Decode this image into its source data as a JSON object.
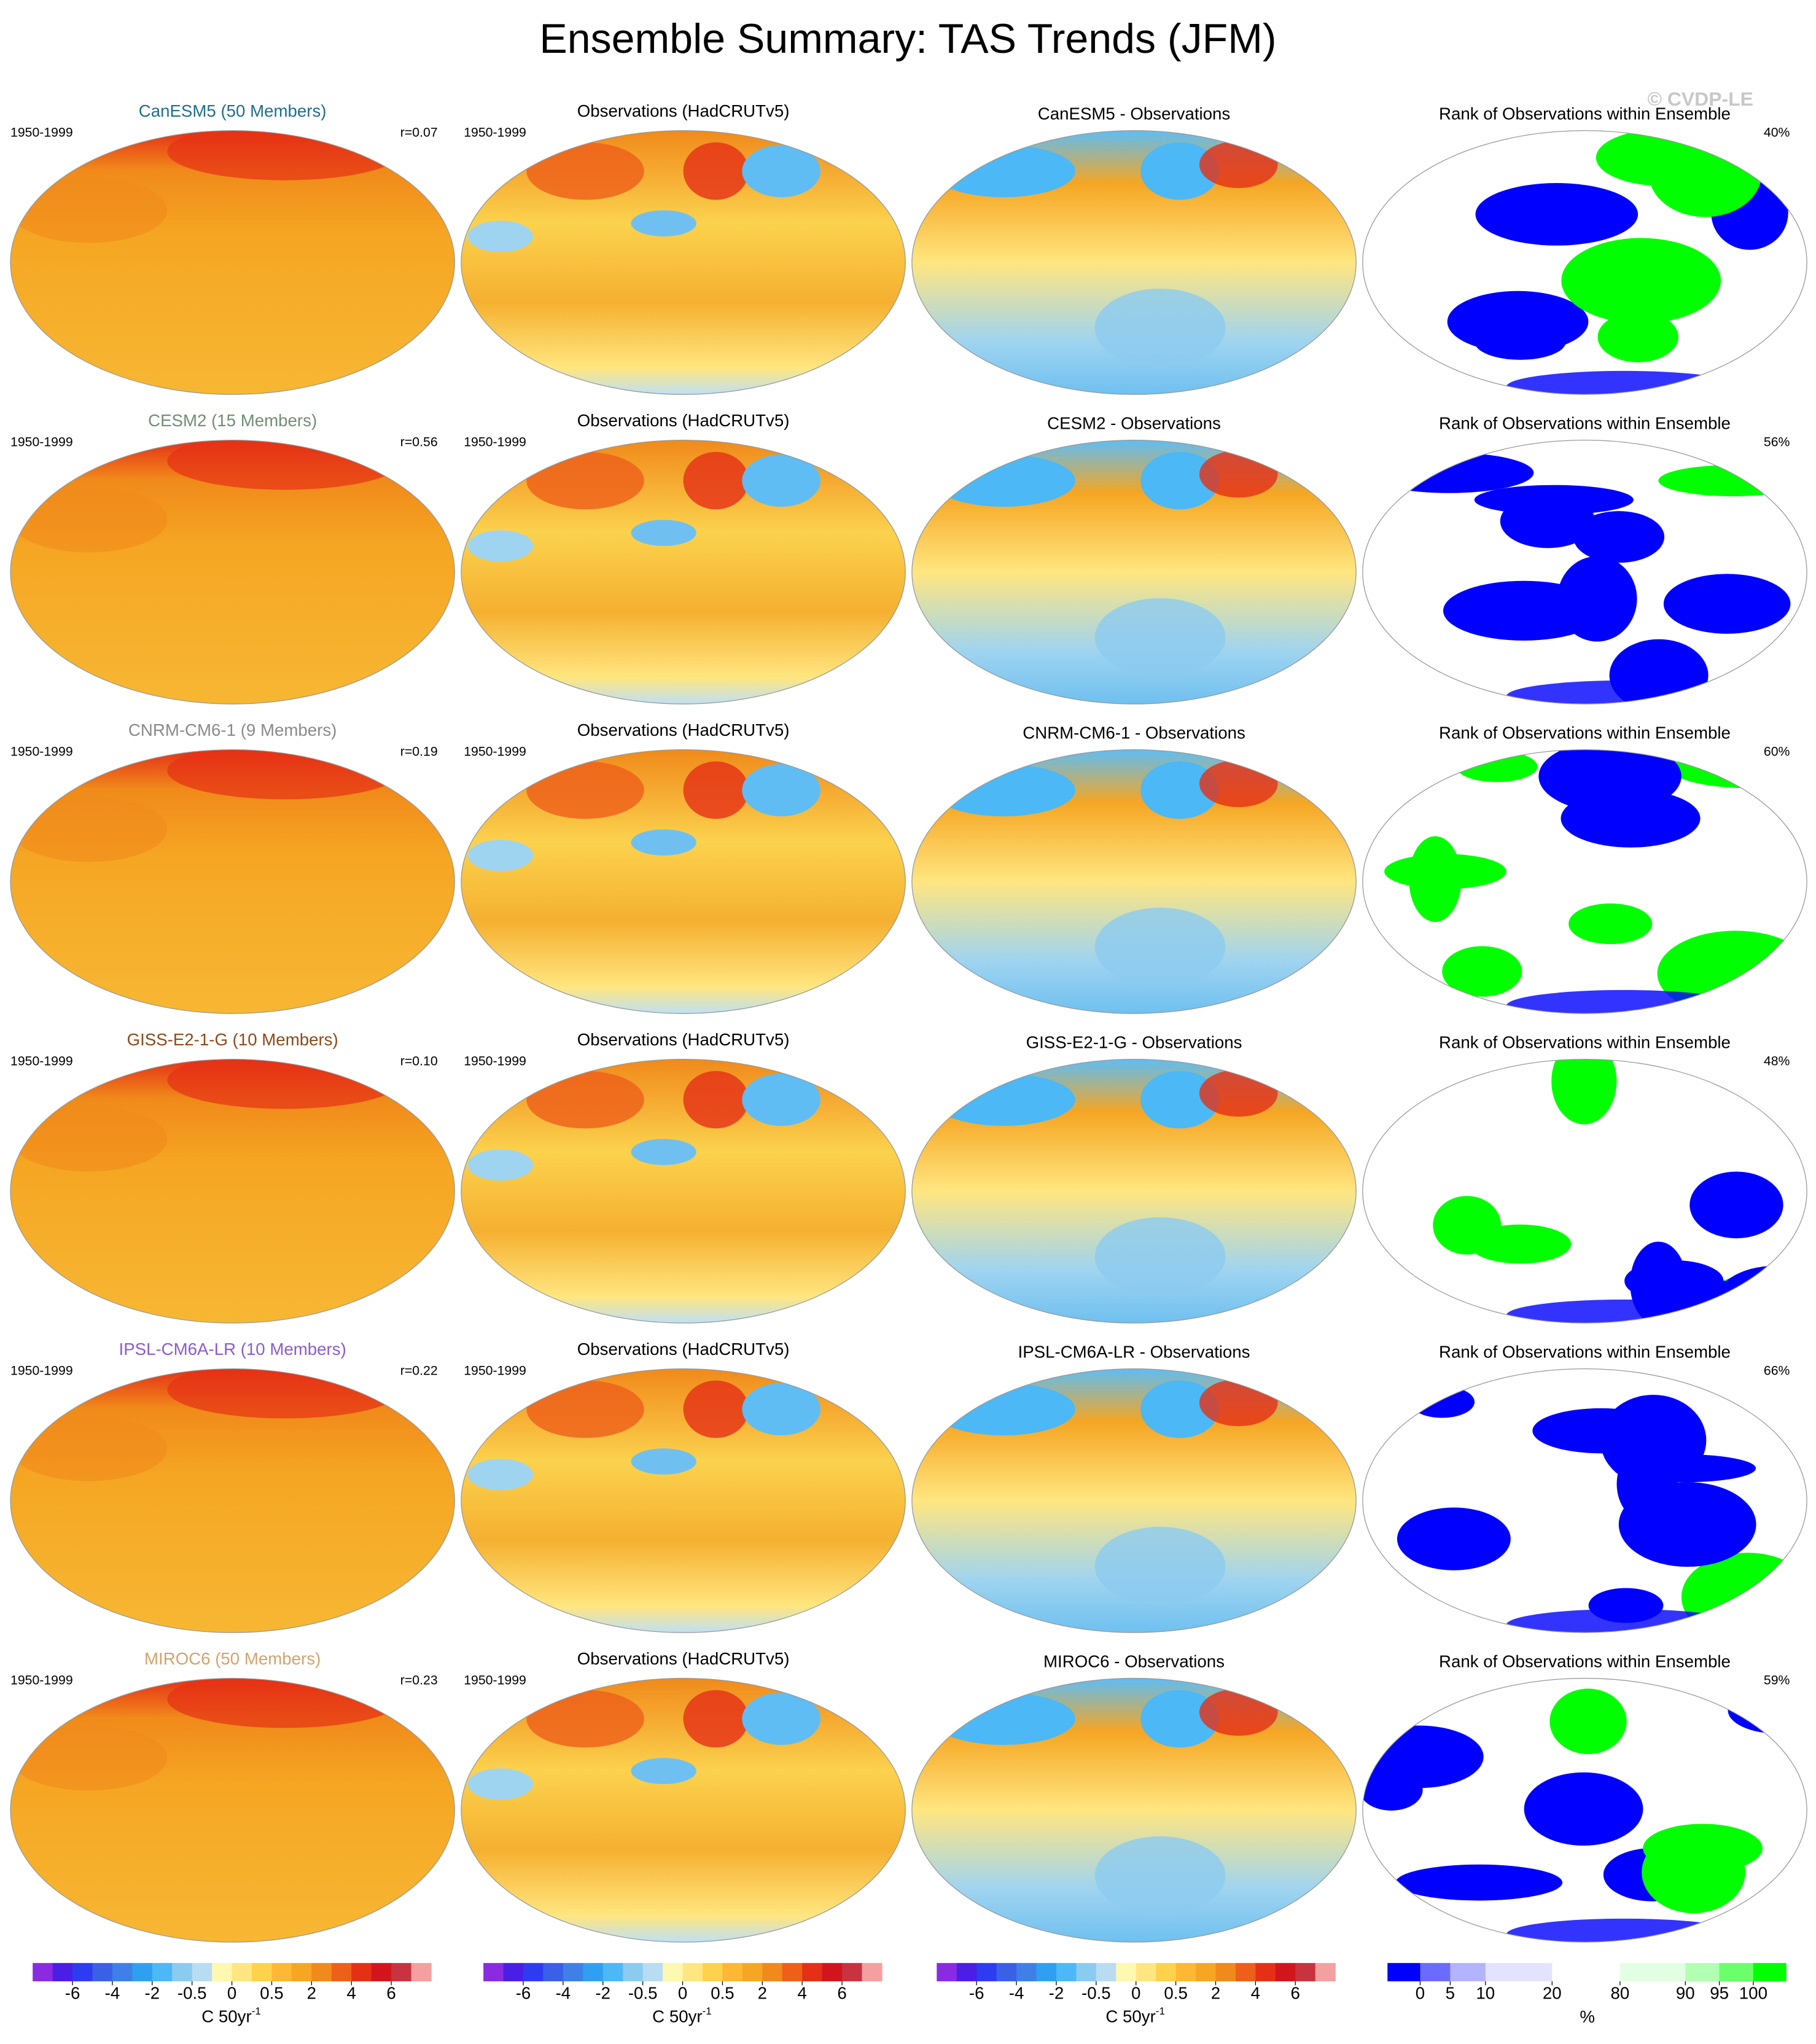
{
  "title": "Ensemble Summary: TAS Trends (JFM)",
  "watermark": "© CVDP-LE",
  "rows": [
    {
      "model": "CanESM5 (50 Members)",
      "model_color": "#1f6e8c",
      "period": "1950-1999",
      "r": "r=0.07",
      "obs_title": "Observations (HadCRUTv5)",
      "obs_period": "1950-1999",
      "diff_title": "CanESM5 - Observations",
      "rank_title": "Rank of Observations within Ensemble",
      "rank_pct": "40%"
    },
    {
      "model": "CESM2 (15 Members)",
      "model_color": "#6f8f72",
      "period": "1950-1999",
      "r": "r=0.56",
      "obs_title": "Observations (HadCRUTv5)",
      "obs_period": "1950-1999",
      "diff_title": "CESM2 - Observations",
      "rank_title": "Rank of Observations within Ensemble",
      "rank_pct": "56%"
    },
    {
      "model": "CNRM-CM6-1 (9 Members)",
      "model_color": "#8a8a8a",
      "period": "1950-1999",
      "r": "r=0.19",
      "obs_title": "Observations (HadCRUTv5)",
      "obs_period": "1950-1999",
      "diff_title": "CNRM-CM6-1 - Observations",
      "rank_title": "Rank of Observations within Ensemble",
      "rank_pct": "60%"
    },
    {
      "model": "GISS-E2-1-G (10 Members)",
      "model_color": "#8b4a1c",
      "period": "1950-1999",
      "r": "r=0.10",
      "obs_title": "Observations (HadCRUTv5)",
      "obs_period": "1950-1999",
      "diff_title": "GISS-E2-1-G - Observations",
      "rank_title": "Rank of Observations within Ensemble",
      "rank_pct": "48%"
    },
    {
      "model": "IPSL-CM6A-LR (10 Members)",
      "model_color": "#8a5cd0",
      "period": "1950-1999",
      "r": "r=0.22",
      "obs_title": "Observations (HadCRUTv5)",
      "obs_period": "1950-1999",
      "diff_title": "IPSL-CM6A-LR - Observations",
      "rank_title": "Rank of Observations within Ensemble",
      "rank_pct": "66%"
    },
    {
      "model": "MIROC6 (50 Members)",
      "model_color": "#d2a36b",
      "period": "1950-1999",
      "r": "r=0.23",
      "obs_title": "Observations (HadCRUTv5)",
      "obs_period": "1950-1999",
      "diff_title": "MIROC6 - Observations",
      "rank_title": "Rank of Observations within Ensemble",
      "rank_pct": "59%"
    }
  ],
  "temp_colorbar": {
    "colors": [
      "#8a2be2",
      "#4b1ee6",
      "#2d3cf0",
      "#3a60e8",
      "#3e80e8",
      "#2fa0f0",
      "#4cb8f5",
      "#8ccbf0",
      "#b8dcf2",
      "#fff8b0",
      "#ffe680",
      "#ffd24d",
      "#ffb833",
      "#f5a623",
      "#f08a1a",
      "#ee5f1a",
      "#e53016",
      "#d4141c",
      "#c8333f",
      "#f5a0a0"
    ],
    "labels": [
      "-6",
      "-4",
      "-2",
      "-0.5",
      "0",
      "0.5",
      "2",
      "4",
      "6"
    ],
    "unit": "C 50yr",
    "unit_exp": "-1"
  },
  "rank_colorbar": {
    "colors": [
      "#0000ff",
      "#6b6bff",
      "#b3b3ff",
      "#e3e3ff",
      "#ffffff",
      "#e3ffe3",
      "#b3ffb3",
      "#6bff6b",
      "#00ff00"
    ],
    "labels": [
      "0",
      "5",
      "10",
      "20",
      "80",
      "90",
      "95",
      "100"
    ],
    "unit": "%"
  }
}
